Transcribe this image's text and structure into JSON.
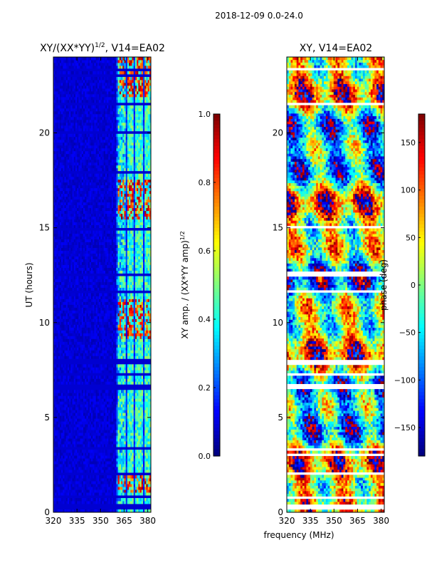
{
  "figure_title": "2018-12-09 0.0-24.0",
  "shared_xlabel": "frequency (MHz)",
  "chart_data": [
    {
      "type": "heatmap",
      "title_main": "XY/(XX*YY)",
      "title_sup": "1/2",
      "title_tail": ", V14=EA02",
      "ylabel": "UT (hours)",
      "xlabel": "frequency (MHz)",
      "xlim": [
        320,
        382
      ],
      "ylim": [
        0,
        24
      ],
      "xticks": [
        320,
        335,
        350,
        365,
        380
      ],
      "yticks": [
        0,
        5,
        10,
        15,
        20
      ],
      "colormap": "jet",
      "colorbar": {
        "label_main": "XY amp. / (XX*YY amp)",
        "label_sup": "1/2",
        "range": [
          0.0,
          1.0
        ],
        "ticks": [
          "0.0",
          "0.2",
          "0.4",
          "0.6",
          "0.8",
          "1.0"
        ]
      },
      "description_bands": {
        "rfi_free_low_region_mhz": [
          320,
          360
        ],
        "signal_region_mhz": [
          360,
          382
        ],
        "background_value": 0.08,
        "signal_value_range": [
          0.3,
          0.95
        ]
      }
    },
    {
      "type": "heatmap",
      "title": "XY, V14=EA02",
      "ylabel": "",
      "xlabel": "frequency (MHz)",
      "xlim": [
        320,
        382
      ],
      "ylim": [
        0,
        24
      ],
      "xticks": [
        320,
        335,
        350,
        365,
        380
      ],
      "yticks": [
        0,
        5,
        10,
        15,
        20
      ],
      "colormap": "jet",
      "colorbar": {
        "label": "phase (deg)",
        "range": [
          -180,
          180
        ],
        "ticks": [
          "−150",
          "−100",
          "−50",
          "0",
          "50",
          "100",
          "150"
        ]
      }
    }
  ],
  "flagged_gaps_hours": [
    [
      0.2,
      0.45
    ],
    [
      0.75,
      0.85
    ],
    [
      2.0,
      2.15
    ],
    [
      2.35,
      2.45
    ],
    [
      2.95,
      3.05
    ],
    [
      3.3,
      3.4
    ],
    [
      6.5,
      6.75
    ],
    [
      7.2,
      7.35
    ],
    [
      7.8,
      8.05
    ],
    [
      11.55,
      11.7
    ],
    [
      12.45,
      12.65
    ],
    [
      14.9,
      15.05
    ],
    [
      17.9,
      17.97
    ],
    [
      20.0,
      20.07
    ],
    [
      21.5,
      21.62
    ],
    [
      22.95,
      23.05
    ],
    [
      23.3,
      23.45
    ]
  ]
}
